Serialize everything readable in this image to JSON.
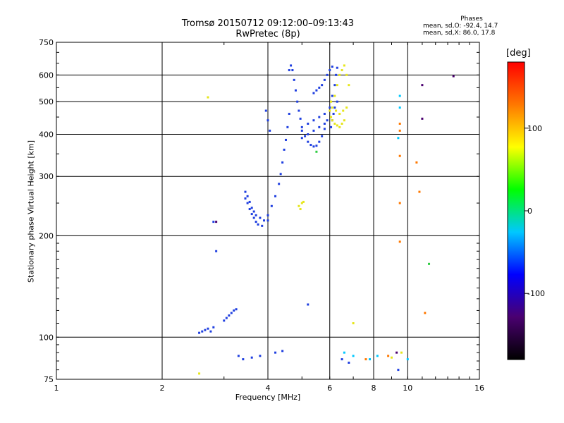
{
  "chart_data": {
    "type": "scatter",
    "title": "Tromsø 20150712 09:12:00–09:13:43",
    "subtitle": "RwPretec (8p)",
    "xlabel": "Frequency [MHz]",
    "ylabel": "Stationary phase Virtual Height [km]",
    "x_scale": "log",
    "y_scale": "log",
    "xlim": [
      1,
      16
    ],
    "ylim": [
      75,
      750
    ],
    "x_ticks": [
      1,
      2,
      4,
      6,
      8,
      10,
      16
    ],
    "y_ticks": [
      75,
      100,
      200,
      300,
      400,
      500,
      600,
      750
    ],
    "grid": true,
    "phase_stats": {
      "title": "Phases",
      "line_o": "mean, sd,O: -92.4, 14.7",
      "line_x": "mean, sd,X:  86.0, 17.8"
    },
    "colorbar": {
      "unit": "[deg]",
      "range": [
        -180,
        180
      ],
      "ticks": [
        100,
        0,
        -100
      ],
      "colors": [
        "#000000",
        "#4a0070",
        "#0000ff",
        "#00c8ff",
        "#00ff00",
        "#ffff00",
        "#ff7800",
        "#ff0000"
      ]
    },
    "series": [
      {
        "color": "#1f3fe0",
        "points": [
          [
            2.55,
            103
          ],
          [
            2.6,
            104
          ],
          [
            2.65,
            105
          ],
          [
            2.7,
            106
          ],
          [
            2.75,
            104
          ],
          [
            2.8,
            107
          ],
          [
            3.0,
            112
          ],
          [
            3.05,
            114
          ],
          [
            3.1,
            116
          ],
          [
            3.15,
            118
          ],
          [
            3.2,
            120
          ],
          [
            3.25,
            121
          ],
          [
            3.45,
            270
          ],
          [
            3.5,
            262
          ],
          [
            3.55,
            252
          ],
          [
            3.6,
            242
          ],
          [
            3.65,
            236
          ],
          [
            3.7,
            230
          ],
          [
            3.8,
            226
          ],
          [
            3.9,
            222
          ],
          [
            4.0,
            222
          ],
          [
            3.45,
            258
          ],
          [
            3.5,
            250
          ],
          [
            3.55,
            240
          ],
          [
            3.6,
            232
          ],
          [
            3.65,
            226
          ],
          [
            3.7,
            220
          ],
          [
            3.75,
            216
          ],
          [
            3.85,
            214
          ],
          [
            4.0,
            230
          ],
          [
            4.1,
            245
          ],
          [
            4.2,
            262
          ],
          [
            4.3,
            285
          ],
          [
            4.35,
            305
          ],
          [
            4.4,
            330
          ],
          [
            4.45,
            360
          ],
          [
            4.5,
            385
          ],
          [
            4.55,
            420
          ],
          [
            4.6,
            460
          ],
          [
            3.95,
            470
          ],
          [
            4.0,
            440
          ],
          [
            4.05,
            410
          ],
          [
            4.6,
            620
          ],
          [
            4.65,
            640
          ],
          [
            4.7,
            620
          ],
          [
            4.75,
            580
          ],
          [
            4.8,
            540
          ],
          [
            4.85,
            500
          ],
          [
            4.9,
            470
          ],
          [
            4.95,
            445
          ],
          [
            5.0,
            420
          ],
          [
            5.1,
            395
          ],
          [
            5.2,
            380
          ],
          [
            5.3,
            372
          ],
          [
            5.4,
            368
          ],
          [
            5.5,
            370
          ],
          [
            5.6,
            380
          ],
          [
            5.7,
            395
          ],
          [
            5.8,
            415
          ],
          [
            5.9,
            440
          ],
          [
            5.0,
            410
          ],
          [
            5.2,
            430
          ],
          [
            5.4,
            440
          ],
          [
            5.6,
            450
          ],
          [
            5.8,
            460
          ],
          [
            5.0,
            390
          ],
          [
            5.2,
            400
          ],
          [
            5.4,
            410
          ],
          [
            5.6,
            420
          ],
          [
            5.8,
            430
          ],
          [
            5.4,
            530
          ],
          [
            5.5,
            540
          ],
          [
            5.6,
            550
          ],
          [
            5.7,
            560
          ],
          [
            5.8,
            580
          ],
          [
            5.9,
            600
          ],
          [
            6.0,
            620
          ],
          [
            6.1,
            635
          ],
          [
            6.0,
            480
          ],
          [
            6.1,
            520
          ],
          [
            6.2,
            560
          ],
          [
            6.25,
            600
          ],
          [
            6.3,
            630
          ],
          [
            6.05,
            420
          ],
          [
            6.1,
            440
          ],
          [
            6.15,
            460
          ],
          [
            6.2,
            480
          ],
          [
            6.3,
            500
          ],
          [
            2.8,
            220
          ],
          [
            2.85,
            180
          ],
          [
            3.3,
            88
          ],
          [
            3.4,
            86
          ],
          [
            3.6,
            87
          ],
          [
            3.8,
            88
          ],
          [
            4.2,
            90
          ],
          [
            4.4,
            91
          ],
          [
            5.2,
            125
          ],
          [
            6.5,
            86
          ],
          [
            6.8,
            84
          ],
          [
            9.4,
            80
          ]
        ]
      },
      {
        "color": "#e6e61a",
        "points": [
          [
            6.0,
            470
          ],
          [
            6.05,
            450
          ],
          [
            6.1,
            440
          ],
          [
            6.2,
            430
          ],
          [
            6.3,
            425
          ],
          [
            6.4,
            420
          ],
          [
            6.5,
            430
          ],
          [
            6.6,
            440
          ],
          [
            6.05,
            500
          ],
          [
            6.2,
            520
          ],
          [
            6.3,
            560
          ],
          [
            6.4,
            600
          ],
          [
            6.5,
            620
          ],
          [
            6.6,
            640
          ],
          [
            6.7,
            600
          ],
          [
            6.8,
            560
          ],
          [
            6.1,
            480
          ],
          [
            6.25,
            470
          ],
          [
            6.4,
            460
          ],
          [
            6.55,
            470
          ],
          [
            6.7,
            480
          ],
          [
            4.9,
            245
          ],
          [
            5.0,
            250
          ],
          [
            5.05,
            252
          ],
          [
            4.95,
            240
          ],
          [
            2.7,
            515
          ],
          [
            2.55,
            78
          ],
          [
            7.0,
            110
          ],
          [
            9.0,
            87
          ],
          [
            9.6,
            90
          ]
        ]
      },
      {
        "color": "#00c8ff",
        "points": [
          [
            9.5,
            520
          ],
          [
            9.5,
            480
          ],
          [
            9.4,
            390
          ],
          [
            6.6,
            90
          ],
          [
            7.0,
            88
          ],
          [
            7.8,
            86
          ],
          [
            8.2,
            88
          ],
          [
            10.0,
            86
          ]
        ]
      },
      {
        "color": "#ff7800",
        "points": [
          [
            9.5,
            430
          ],
          [
            9.5,
            410
          ],
          [
            9.5,
            345
          ],
          [
            9.5,
            250
          ],
          [
            9.5,
            192
          ],
          [
            11.2,
            118
          ],
          [
            10.6,
            330
          ],
          [
            10.8,
            270
          ],
          [
            7.6,
            86
          ],
          [
            8.8,
            88
          ]
        ]
      },
      {
        "color": "#4a0070",
        "points": [
          [
            11.0,
            560
          ],
          [
            11.0,
            445
          ],
          [
            13.5,
            595
          ],
          [
            2.85,
            220
          ],
          [
            9.3,
            90
          ]
        ]
      },
      {
        "color": "#2ecc40",
        "points": [
          [
            5.5,
            355
          ],
          [
            11.5,
            165
          ]
        ]
      }
    ]
  }
}
